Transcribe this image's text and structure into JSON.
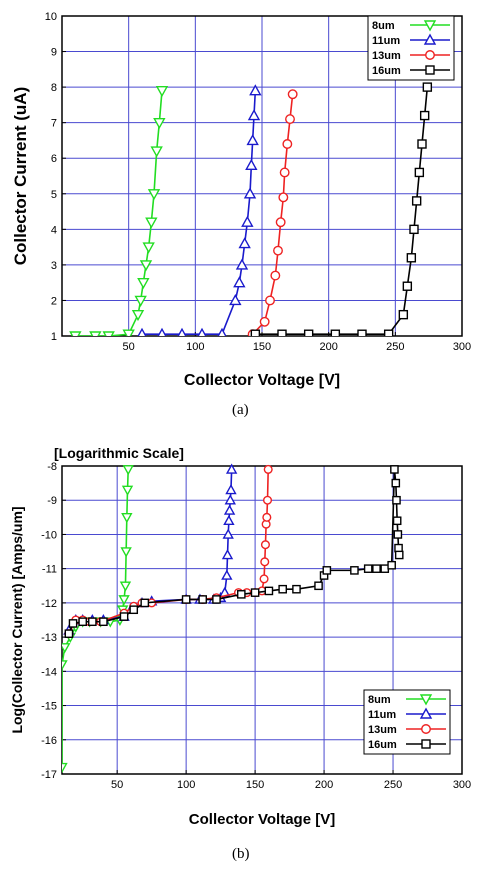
{
  "chart_data": [
    {
      "type": "line",
      "panel_caption": "(a)",
      "title": "",
      "xlabel": "Collector Voltage [V]",
      "ylabel": "Collector Current (uA)",
      "xlim": [
        0,
        300
      ],
      "ylim": [
        1,
        10
      ],
      "xticks": [
        50,
        100,
        150,
        200,
        250,
        300
      ],
      "yticks": [
        1,
        2,
        3,
        4,
        5,
        6,
        7,
        8,
        9,
        10
      ],
      "grid": true,
      "legend_position": "top-right",
      "series": [
        {
          "name": "8um",
          "color": "#22dd22",
          "marker": "triangle-down",
          "x": [
            10,
            25,
            35,
            50,
            57,
            59,
            61,
            63,
            65,
            67,
            69,
            71,
            73,
            75
          ],
          "y": [
            1.0,
            1.0,
            1.0,
            1.05,
            1.6,
            2.0,
            2.5,
            3.0,
            3.5,
            4.2,
            5.0,
            6.2,
            7.0,
            7.9
          ]
        },
        {
          "name": "11um",
          "color": "#1a1acc",
          "marker": "triangle-up",
          "x": [
            60,
            75,
            90,
            105,
            120,
            130,
            133,
            135,
            137,
            139,
            141,
            142,
            143,
            144,
            145
          ],
          "y": [
            1.05,
            1.05,
            1.05,
            1.05,
            1.05,
            2.0,
            2.5,
            3.0,
            3.6,
            4.2,
            5.0,
            5.8,
            6.5,
            7.2,
            7.9
          ]
        },
        {
          "name": "13um",
          "color": "#ee2222",
          "marker": "circle",
          "x": [
            143,
            152,
            156,
            160,
            162,
            164,
            166,
            167,
            169,
            171,
            173
          ],
          "y": [
            1.05,
            1.4,
            2.0,
            2.7,
            3.4,
            4.2,
            4.9,
            5.6,
            6.4,
            7.1,
            7.8
          ]
        },
        {
          "name": "16um",
          "color": "#000000",
          "marker": "square",
          "x": [
            145,
            165,
            185,
            205,
            225,
            245,
            256,
            259,
            262,
            264,
            266,
            268,
            270,
            272,
            274
          ],
          "y": [
            1.05,
            1.05,
            1.05,
            1.05,
            1.05,
            1.05,
            1.6,
            2.4,
            3.2,
            4.0,
            4.8,
            5.6,
            6.4,
            7.2,
            8.0
          ]
        }
      ]
    },
    {
      "type": "line",
      "panel_caption": "(b)",
      "title": "[Logarithmic Scale]",
      "xlabel": "Collector Voltage [V]",
      "ylabel": "Log(Collector Current) [Amps/um]",
      "xlim": [
        10,
        300
      ],
      "ylim": [
        -17,
        -8
      ],
      "xticks": [
        50,
        100,
        150,
        200,
        250,
        300
      ],
      "yticks": [
        -17,
        -16,
        -15,
        -14,
        -13,
        -12,
        -11,
        -10,
        -9,
        -8
      ],
      "grid": true,
      "legend_position": "bottom-right",
      "series": [
        {
          "name": "8um",
          "color": "#22dd22",
          "marker": "triangle-down",
          "x": [
            10,
            10,
            12,
            16,
            20,
            25,
            30,
            38,
            45,
            52,
            54,
            55,
            56,
            56.5,
            57,
            57.5,
            58
          ],
          "y": [
            -16.8,
            -13.8,
            -13.3,
            -13.0,
            -12.7,
            -12.55,
            -12.55,
            -12.55,
            -12.55,
            -12.5,
            -12.2,
            -11.9,
            -11.5,
            -10.5,
            -9.5,
            -8.7,
            -8.1
          ]
        },
        {
          "name": "11um",
          "color": "#1a1acc",
          "marker": "triangle-up",
          "x": [
            15,
            20,
            25,
            32,
            40,
            55,
            60,
            68,
            75,
            100,
            110,
            120,
            125,
            128,
            129.5,
            130,
            130.5,
            131,
            131.5,
            132,
            132.5,
            133
          ],
          "y": [
            -12.8,
            -12.5,
            -12.5,
            -12.5,
            -12.5,
            -12.4,
            -12.2,
            -12.0,
            -11.95,
            -11.9,
            -11.9,
            -11.9,
            -11.85,
            -11.7,
            -11.2,
            -10.6,
            -10.0,
            -9.6,
            -9.3,
            -9.0,
            -8.7,
            -8.1
          ]
        },
        {
          "name": "13um",
          "color": "#ee2222",
          "marker": "circle",
          "x": [
            15,
            20,
            25,
            30,
            38,
            55,
            62,
            68,
            75,
            100,
            112,
            122,
            138,
            144,
            150,
            155,
            156.5,
            157,
            157.5,
            158,
            158.5,
            159,
            159.5
          ],
          "y": [
            -12.9,
            -12.5,
            -12.5,
            -12.55,
            -12.55,
            -12.3,
            -12.1,
            -12.0,
            -12.0,
            -11.9,
            -11.9,
            -11.85,
            -11.7,
            -11.7,
            -11.7,
            -11.65,
            -11.3,
            -10.8,
            -10.3,
            -9.7,
            -9.5,
            -9.0,
            -8.1
          ]
        },
        {
          "name": "16um",
          "color": "#000000",
          "marker": "square",
          "x": [
            15,
            18,
            25,
            32,
            40,
            55,
            62,
            70,
            100,
            112,
            122,
            140,
            150,
            160,
            170,
            180,
            196,
            200,
            202,
            222,
            232,
            238,
            244,
            249,
            251,
            252,
            252.5,
            253,
            253.5,
            254,
            254.5
          ],
          "y": [
            -12.9,
            -12.6,
            -12.55,
            -12.55,
            -12.55,
            -12.4,
            -12.2,
            -12.0,
            -11.9,
            -11.9,
            -11.9,
            -11.75,
            -11.7,
            -11.65,
            -11.6,
            -11.6,
            -11.5,
            -11.2,
            -11.05,
            -11.05,
            -11.0,
            -11.0,
            -11.0,
            -10.9,
            -8.1,
            -8.5,
            -9.0,
            -9.6,
            -10.0,
            -10.4,
            -10.6
          ]
        }
      ]
    }
  ]
}
